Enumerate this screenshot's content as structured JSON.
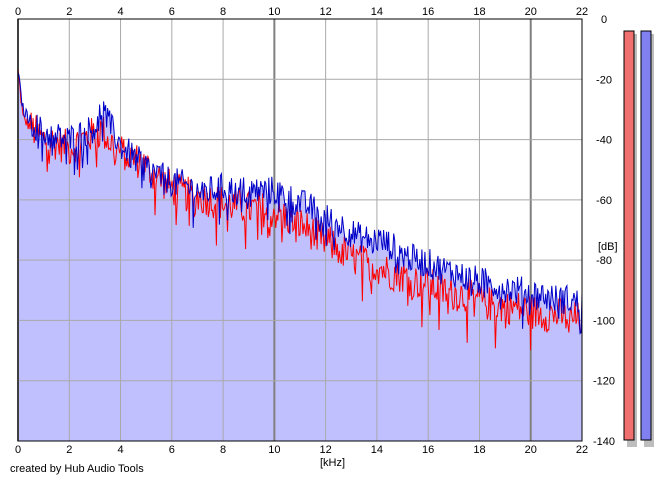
{
  "footer": {
    "credit": "created by Hub Audio Tools"
  },
  "colors": {
    "plot_background": "#ffffff",
    "fill": "#c0c0ff",
    "grid": "#a9a9a9",
    "grid_major": "#808080",
    "left_channel": "#ff0000",
    "right_channel": "#0000c8",
    "meter_left_fill": "#f07070",
    "meter_right_fill": "#8080f0"
  },
  "chart_data": {
    "type": "area",
    "title": "",
    "xlabel": "[kHz]",
    "ylabel": "[dB]",
    "xlim": [
      0,
      22
    ],
    "ylim": [
      -140,
      0
    ],
    "x_ticks": [
      "0",
      "2",
      "4",
      "6",
      "8",
      "10",
      "12",
      "14",
      "16",
      "18",
      "20",
      "22"
    ],
    "y_ticks": [
      "0",
      "-20",
      "-40",
      "-60",
      "-80",
      "-100",
      "-120",
      "-140"
    ],
    "x_tick_values": [
      0,
      2,
      4,
      6,
      8,
      10,
      12,
      14,
      16,
      18,
      20,
      22
    ],
    "y_tick_values": [
      0,
      -20,
      -40,
      -60,
      -80,
      -100,
      -120,
      -140
    ],
    "grid": true,
    "x_axis_labels_position": "top and bottom",
    "y_axis_labels_position": "right",
    "x": [
      0,
      0.2,
      0.5,
      1,
      1.5,
      2,
      2.5,
      3,
      3.3,
      3.5,
      4,
      4.5,
      5,
      5.5,
      6,
      6.5,
      7,
      7.5,
      8,
      8.5,
      9,
      9.5,
      10,
      10.5,
      11,
      11.5,
      12,
      12.5,
      13,
      13.5,
      14,
      14.5,
      15,
      15.5,
      16,
      16.5,
      17,
      17.5,
      18,
      18.5,
      19,
      19.5,
      20,
      20.5,
      21,
      21.5,
      22
    ],
    "series": [
      {
        "values": [
          -17,
          -33,
          -36,
          -40,
          -41,
          -43,
          -40,
          -38,
          -37,
          -40,
          -44,
          -46,
          -49,
          -53,
          -56,
          -58,
          -59,
          -60,
          -61,
          -62,
          -63,
          -63,
          -64,
          -66,
          -68,
          -71,
          -74,
          -76,
          -79,
          -81,
          -82,
          -84,
          -85,
          -87,
          -88,
          -90,
          -91,
          -92,
          -93,
          -95,
          -95,
          -96,
          -97,
          -98,
          -98,
          -99,
          -100
        ]
      },
      {
        "values": [
          -18,
          -30,
          -34,
          -38,
          -39,
          -40,
          -38,
          -36,
          -29,
          -34,
          -42,
          -46,
          -49,
          -52,
          -54,
          -55,
          -57,
          -57,
          -56,
          -57,
          -57,
          -57,
          -57,
          -59,
          -61,
          -63,
          -66,
          -68,
          -71,
          -73,
          -73,
          -75,
          -78,
          -80,
          -81,
          -83,
          -84,
          -86,
          -87,
          -88,
          -89,
          -90,
          -91,
          -92,
          -93,
          -93,
          -95
        ]
      }
    ],
    "meters": [
      {
        "level_db": 0
      },
      {
        "level_db": 0
      }
    ]
  }
}
